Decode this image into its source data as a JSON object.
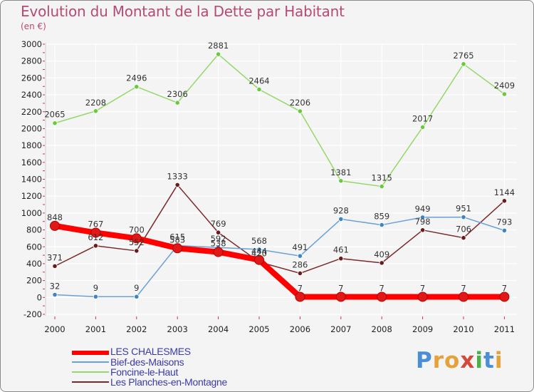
{
  "title": "Evolution du Montant de la Dette par Habitant",
  "subtitle": "(en €)",
  "brand": "Proxiti",
  "colors": {
    "title": "#b64a74",
    "axis_text": "#222222",
    "grid": "#ffffff",
    "plot_bg": "#f4f4f4"
  },
  "chart_data": {
    "type": "line",
    "title": "Evolution du Montant de la Dette par Habitant",
    "subtitle": "(en €)",
    "xlabel": "",
    "ylabel": "",
    "x": [
      "2000",
      "2001",
      "2002",
      "2003",
      "2004",
      "2005",
      "2006",
      "2007",
      "2008",
      "2009",
      "2010",
      "2011"
    ],
    "ylim": [
      -200,
      3000
    ],
    "yticks": [
      -200,
      0,
      200,
      400,
      600,
      800,
      1000,
      1200,
      1400,
      1600,
      1800,
      2000,
      2200,
      2400,
      2600,
      2800,
      3000
    ],
    "grid": true,
    "legend_position": "bottom-left",
    "series": [
      {
        "name": "LES CHALESMES",
        "color": "#ff0000",
        "marker_color": "#e01818",
        "emphasis": true,
        "values": [
          848,
          767,
          700,
          583,
          538,
          444,
          7,
          7,
          7,
          7,
          7,
          7
        ]
      },
      {
        "name": "Bief-des-Maisons",
        "color": "#6aa1d6",
        "marker_color": "#3d85c6",
        "values": [
          32,
          9,
          9,
          615,
          592,
          568,
          491,
          928,
          859,
          949,
          951,
          793
        ]
      },
      {
        "name": "Foncine-le-Haut",
        "color": "#95d86a",
        "marker_color": "#6cc83c",
        "values": [
          2065,
          2208,
          2496,
          2306,
          2881,
          2464,
          2206,
          1381,
          1315,
          2017,
          2765,
          2409
        ]
      },
      {
        "name": "Les Planches-en-Montagne",
        "color": "#7a2a2a",
        "marker_color": "#6a1c1c",
        "values": [
          371,
          612,
          552,
          1333,
          769,
          420,
          286,
          461,
          409,
          798,
          706,
          1144
        ]
      }
    ]
  }
}
